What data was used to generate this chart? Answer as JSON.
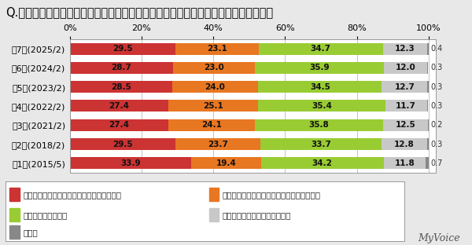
{
  "title": "Q.普段の生活で、身体的な疲労・精神的な疲労のどちらを感じることが多いですか？",
  "categories": [
    "第7回(2025/2)",
    "第6回(2024/2)",
    "第5回(2023/2)",
    "第4回(2022/2)",
    "第3回(2021/2)",
    "第2回(2018/2)",
    "第1回(2015/5)"
  ],
  "series": [
    {
      "label": "身体的な疲労・疲れを感じることの方が多い",
      "values": [
        29.5,
        28.7,
        28.5,
        27.4,
        27.4,
        29.5,
        33.9
      ],
      "color": "#cc3333"
    },
    {
      "label": "精神的な疲労・疲れを感じることの方が多い",
      "values": [
        23.1,
        23.0,
        24.0,
        25.1,
        24.1,
        23.7,
        19.4
      ],
      "color": "#e87722"
    },
    {
      "label": "どちらも同じぐらい",
      "values": [
        34.7,
        35.9,
        34.5,
        35.4,
        35.8,
        33.7,
        34.2
      ],
      "color": "#99cc33"
    },
    {
      "label": "疲労・疲れを感じることはない",
      "values": [
        12.3,
        12.0,
        12.7,
        11.7,
        12.5,
        12.8,
        11.8
      ],
      "color": "#c8c8c8"
    },
    {
      "label": "無回答",
      "values": [
        0.4,
        0.3,
        0.3,
        0.3,
        0.2,
        0.3,
        0.7
      ],
      "color": "#888888"
    }
  ],
  "xlim": [
    0,
    100
  ],
  "xticks": [
    0,
    20,
    40,
    60,
    80,
    100
  ],
  "xticklabels": [
    "0%",
    "20%",
    "40%",
    "60%",
    "80%",
    "100%"
  ],
  "background_color": "#e8e8e8",
  "plot_background": "#ffffff",
  "watermark": "MyVoice",
  "title_fontsize": 10.5,
  "label_fontsize": 7.5,
  "tick_fontsize": 8,
  "legend_fontsize": 7.5
}
